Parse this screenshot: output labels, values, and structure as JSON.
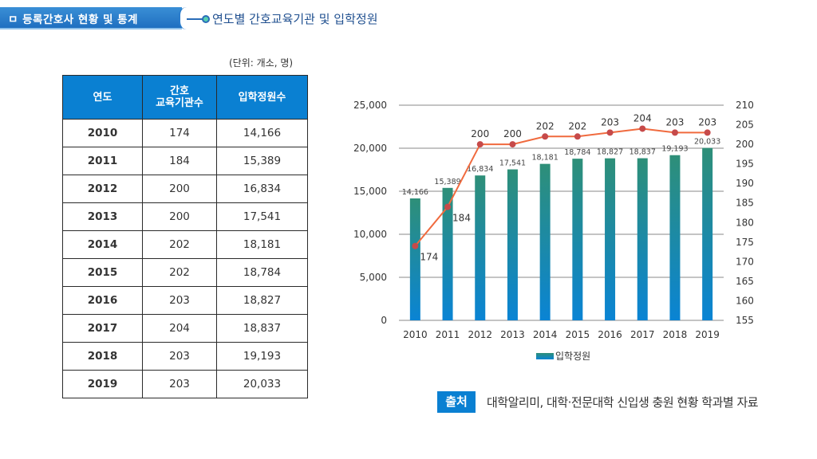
{
  "header": {
    "section_title": "ㅁ 등록간호사 현황 및 통계",
    "subtitle": "연도별 간호교육기관 및 입학정원"
  },
  "table": {
    "unit_note": "(단위:  개소, 명)",
    "columns": [
      "연도",
      "간호\n교육기관수",
      "입학정원수"
    ],
    "rows": [
      [
        "2010",
        "174",
        "14,166"
      ],
      [
        "2011",
        "184",
        "15,389"
      ],
      [
        "2012",
        "200",
        "16,834"
      ],
      [
        "2013",
        "200",
        "17,541"
      ],
      [
        "2014",
        "202",
        "18,181"
      ],
      [
        "2015",
        "202",
        "18,784"
      ],
      [
        "2016",
        "203",
        "18,827"
      ],
      [
        "2017",
        "204",
        "18,837"
      ],
      [
        "2018",
        "203",
        "19,193"
      ],
      [
        "2019",
        "203",
        "20,033"
      ]
    ]
  },
  "chart_data": {
    "type": "bar",
    "title": "",
    "categories": [
      "2010",
      "2011",
      "2012",
      "2013",
      "2014",
      "2015",
      "2016",
      "2017",
      "2018",
      "2019"
    ],
    "series": [
      {
        "name": "입학정원",
        "type": "bar",
        "axis": "left",
        "values": [
          14166,
          15389,
          16834,
          17541,
          18181,
          18784,
          18827,
          18837,
          19193,
          20033
        ],
        "labels": [
          "14,166",
          "15,389",
          "16,834",
          "17,541",
          "18,181",
          "18,784",
          "18,827",
          "18,837",
          "19,193",
          "20,033"
        ],
        "color_top": "#2e8f78",
        "color_bottom": "#0a84d4"
      },
      {
        "name": "간호교육기관수",
        "type": "line",
        "axis": "right",
        "values": [
          174,
          184,
          200,
          200,
          202,
          202,
          203,
          204,
          203,
          203
        ],
        "line_color": "#f06a3e",
        "marker_color": "#c64a4a"
      }
    ],
    "left_axis": {
      "ylim": [
        0,
        25000
      ],
      "ticks": [
        0,
        5000,
        10000,
        15000,
        20000,
        25000
      ],
      "tick_labels": [
        "0",
        "5,000",
        "10,000",
        "15,000",
        "20,000",
        "25,000"
      ]
    },
    "right_axis": {
      "ylim": [
        155,
        210
      ],
      "ticks": [
        155,
        160,
        165,
        170,
        175,
        180,
        185,
        190,
        195,
        200,
        205,
        210
      ],
      "tick_labels": [
        "155",
        "160",
        "165",
        "170",
        "175",
        "180",
        "185",
        "190",
        "195",
        "200",
        "205",
        "210"
      ]
    },
    "grid": true,
    "legend": {
      "placement": "bottom",
      "entries": [
        "입학정원"
      ]
    }
  },
  "source": {
    "badge": "출처",
    "text": "대학알리미, 대학·전문대학 신입생 충원 현황 학과별 자료"
  }
}
